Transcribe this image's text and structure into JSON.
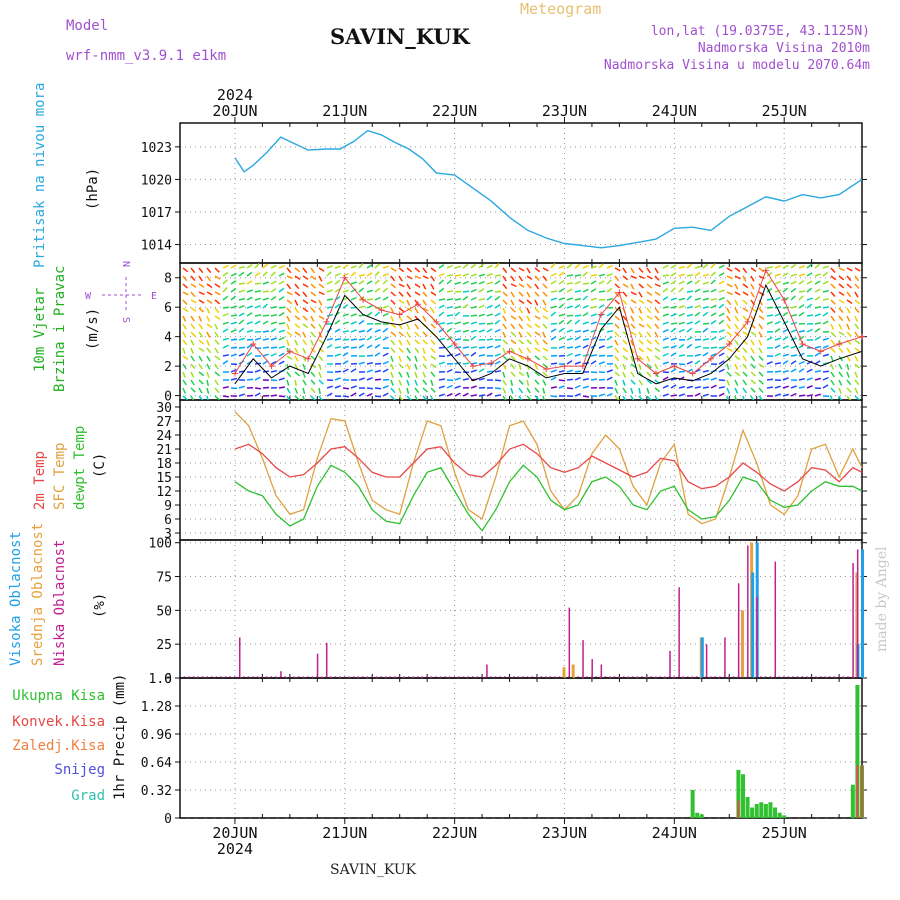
{
  "header": {
    "model_label": "Model",
    "model_name": "wrf-nmm_v3.9.1 e1km",
    "station": "SAVIN_KUK",
    "meteogram_label": "Meteogram",
    "lonlat": "lon,lat (19.0375E, 43.1125N)",
    "altitude": "Nadmorska Visina 2010m",
    "model_altitude": "Nadmorska Visina u modelu 2070.64m",
    "year": "2024",
    "made_by": "made by Angel",
    "bottom_station": "SAVIN_KUK"
  },
  "colors": {
    "pressure": "#2aa8e0",
    "temp2m": "#e84848",
    "sfc_temp": "#e0a040",
    "dewpoint": "#30c030",
    "cloud_high": "#20a0e8",
    "cloud_mid": "#e8a040",
    "cloud_low": "#c02090",
    "precip_total": "#30c030",
    "precip_conv": "#e84848",
    "wind_speed": "#000000",
    "wind_gust": "#e84848",
    "axis_purple": "#a050d0"
  },
  "chart_data": [
    {
      "type": "line",
      "id": "pressure",
      "x_ticks": [
        "20JUN",
        "21JUN",
        "22JUN",
        "23JUN",
        "24JUN",
        "25JUN"
      ],
      "ylabel_title": "Pritisak na nivou mora",
      "ylabel_unit": "(hPa)",
      "yticks": [
        1014,
        1017,
        1020,
        1023
      ],
      "ylim": [
        1012.3,
        1025.2
      ],
      "x_hours": [
        0,
        2,
        4,
        7,
        10,
        13,
        16,
        20,
        23,
        26,
        29,
        32,
        35,
        38,
        41,
        44,
        48,
        52,
        56,
        60,
        64,
        68,
        72,
        76,
        80,
        84,
        88,
        92,
        96,
        100,
        104,
        108,
        112,
        116,
        120,
        124,
        128,
        132,
        137
      ],
      "values": [
        1022,
        1020.7,
        1021.3,
        1022.5,
        1023.9,
        1023.3,
        1022.7,
        1022.8,
        1022.8,
        1023.5,
        1024.5,
        1024.1,
        1023.4,
        1022.8,
        1021.9,
        1020.6,
        1020.4,
        1019.2,
        1018.0,
        1016.5,
        1015.3,
        1014.6,
        1014.1,
        1013.9,
        1013.7,
        1013.9,
        1014.2,
        1014.5,
        1015.5,
        1015.6,
        1015.3,
        1016.6,
        1017.5,
        1018.4,
        1018.0,
        1018.6,
        1018.3,
        1018.6,
        1020.0
      ]
    },
    {
      "type": "line",
      "id": "wind",
      "x_ticks": [
        "20JUN",
        "21JUN",
        "22JUN",
        "23JUN",
        "24JUN",
        "25JUN"
      ],
      "ylabel_title": "10m Vjetar Brzina i Pravac",
      "ylabel_title_lines": [
        "10m Vjetar",
        "Brzina i Pravac"
      ],
      "ylabel_unit": "(m/s)",
      "yticks": [
        0,
        2,
        4,
        6,
        8
      ],
      "ylim": [
        -0.3,
        9.0
      ],
      "compass": [
        "N",
        "W",
        "E",
        "S"
      ],
      "x_hours": [
        0,
        4,
        8,
        12,
        16,
        20,
        24,
        28,
        32,
        36,
        40,
        44,
        48,
        52,
        56,
        60,
        64,
        68,
        72,
        76,
        80,
        84,
        88,
        92,
        96,
        100,
        104,
        108,
        112,
        116,
        120,
        124,
        128,
        132,
        137
      ],
      "speed": [
        0.8,
        2.5,
        1.2,
        2.0,
        1.5,
        4.0,
        6.8,
        5.5,
        5.0,
        4.8,
        5.2,
        4.0,
        2.5,
        1.0,
        1.5,
        2.5,
        2.0,
        1.2,
        1.5,
        1.5,
        4.5,
        6.0,
        1.5,
        0.8,
        1.2,
        1.0,
        1.5,
        2.5,
        4.0,
        7.5,
        5.0,
        2.5,
        2.0,
        2.5,
        3.0
      ],
      "gust": [
        1.5,
        3.5,
        2.0,
        3.0,
        2.5,
        5.0,
        8.0,
        6.5,
        5.8,
        5.5,
        6.2,
        5.0,
        3.5,
        2.0,
        2.2,
        3.0,
        2.5,
        1.8,
        2.0,
        2.0,
        5.5,
        7.0,
        2.5,
        1.5,
        2.0,
        1.5,
        2.5,
        3.5,
        5.0,
        8.5,
        6.5,
        3.5,
        3.0,
        3.5,
        4.0
      ]
    },
    {
      "type": "line",
      "id": "temperature",
      "x_ticks": [
        "20JUN",
        "21JUN",
        "22JUN",
        "23JUN",
        "24JUN",
        "25JUN"
      ],
      "ylabel_series": [
        "2m Temp",
        "SFC Temp",
        "dewpt Temp"
      ],
      "ylabel_unit": "(C)",
      "yticks": [
        3,
        6,
        9,
        12,
        15,
        18,
        21,
        24,
        27,
        30
      ],
      "ylim": [
        1.5,
        31.5
      ],
      "x_hours": [
        0,
        3,
        6,
        9,
        12,
        15,
        18,
        21,
        24,
        27,
        30,
        33,
        36,
        39,
        42,
        45,
        48,
        51,
        54,
        57,
        60,
        63,
        66,
        69,
        72,
        75,
        78,
        81,
        84,
        87,
        90,
        93,
        96,
        99,
        102,
        105,
        108,
        111,
        114,
        117,
        120,
        123,
        126,
        129,
        132,
        135,
        137
      ],
      "t2m": [
        21,
        22,
        20,
        17,
        15,
        15.5,
        18,
        21,
        21.5,
        19,
        16,
        15,
        15,
        18,
        21,
        21.5,
        18,
        15.5,
        15,
        17.5,
        21,
        22,
        20,
        17,
        16,
        17,
        19.5,
        18,
        16.5,
        15,
        16,
        19,
        18.5,
        14,
        12.5,
        13,
        15,
        18,
        16,
        13.5,
        12,
        14,
        17,
        16.5,
        14,
        17,
        16
      ],
      "sfc": [
        29,
        26,
        19,
        11,
        7,
        8,
        19,
        27.5,
        27,
        18,
        10,
        8,
        7,
        18,
        27,
        26,
        16,
        8,
        6,
        15,
        26,
        27,
        22,
        12,
        8,
        11,
        20,
        24,
        21,
        13,
        9,
        18,
        22,
        7,
        5,
        6,
        15,
        25,
        18,
        9,
        7,
        11,
        21,
        22,
        15,
        21,
        17
      ],
      "dew": [
        14,
        12,
        11,
        7,
        4.5,
        6,
        13,
        17.5,
        16,
        13,
        8,
        5.5,
        5,
        11,
        16,
        17,
        12,
        7,
        3.5,
        8,
        14,
        17.5,
        15,
        10,
        8,
        9,
        14,
        15,
        13,
        9,
        8,
        12,
        13,
        8,
        6,
        6.5,
        10,
        15,
        14,
        10,
        8.5,
        9,
        12,
        14,
        13,
        13,
        12
      ]
    },
    {
      "type": "bar",
      "id": "clouds",
      "x_ticks": [
        "20JUN",
        "21JUN",
        "22JUN",
        "23JUN",
        "24JUN",
        "25JUN"
      ],
      "ylabel_series": [
        "Visoka Oblacnost",
        "Srednja Oblacnost",
        "Niska Oblacnost"
      ],
      "ylabel_unit": "(%)",
      "yticks": [
        0,
        25,
        50,
        75,
        100
      ],
      "ylim": [
        0,
        102
      ],
      "low": [
        {
          "h": 1,
          "v": 30
        },
        {
          "h": 10,
          "v": 5
        },
        {
          "h": 18,
          "v": 18
        },
        {
          "h": 20,
          "v": 26
        },
        {
          "h": 55,
          "v": 10
        },
        {
          "h": 73,
          "v": 52
        },
        {
          "h": 76,
          "v": 28
        },
        {
          "h": 78,
          "v": 14
        },
        {
          "h": 80,
          "v": 10
        },
        {
          "h": 95,
          "v": 20
        },
        {
          "h": 97,
          "v": 67
        },
        {
          "h": 103,
          "v": 25
        },
        {
          "h": 107,
          "v": 30
        },
        {
          "h": 110,
          "v": 70
        },
        {
          "h": 112,
          "v": 98
        },
        {
          "h": 114,
          "v": 60
        },
        {
          "h": 118,
          "v": 86
        },
        {
          "h": 135,
          "v": 85
        },
        {
          "h": 136,
          "v": 95
        }
      ],
      "mid": [
        {
          "h": 72,
          "v": 8
        },
        {
          "h": 74,
          "v": 10
        },
        {
          "h": 102,
          "v": 30
        },
        {
          "h": 111,
          "v": 50
        },
        {
          "h": 113,
          "v": 100
        },
        {
          "h": 136,
          "v": 78
        }
      ],
      "high": [
        {
          "h": 102,
          "v": 30
        },
        {
          "h": 113,
          "v": 78
        },
        {
          "h": 114,
          "v": 100
        },
        {
          "h": 136,
          "v": 25
        },
        {
          "h": 137,
          "v": 95
        }
      ]
    },
    {
      "type": "bar",
      "id": "precip",
      "x_ticks": [
        "20JUN",
        "21JUN",
        "22JUN",
        "23JUN",
        "24JUN",
        "25JUN"
      ],
      "xticks_bottom": [
        "20JUN",
        "21JUN",
        "22JUN",
        "23JUN",
        "24JUN",
        "25JUN"
      ],
      "ylabel_unit": "1hr Precip (mm)",
      "yticks": [
        0,
        0.32,
        0.64,
        0.96,
        1.28,
        1.6
      ],
      "ytick_labels": [
        "0",
        "0.32",
        "0.64",
        "0.96",
        "1.28",
        "1.6"
      ],
      "ylim": [
        0,
        1.6
      ],
      "legend": [
        "Ukupna Kisa",
        "Konvek.Kisa",
        "Zaledj.Kisa",
        "Snijeg",
        "Grad"
      ],
      "total": [
        {
          "h": 100,
          "v": 0.32
        },
        {
          "h": 101,
          "v": 0.06
        },
        {
          "h": 102,
          "v": 0.04
        },
        {
          "h": 110,
          "v": 0.55
        },
        {
          "h": 111,
          "v": 0.5
        },
        {
          "h": 112,
          "v": 0.24
        },
        {
          "h": 113,
          "v": 0.12
        },
        {
          "h": 114,
          "v": 0.16
        },
        {
          "h": 115,
          "v": 0.18
        },
        {
          "h": 116,
          "v": 0.16
        },
        {
          "h": 117,
          "v": 0.18
        },
        {
          "h": 118,
          "v": 0.12
        },
        {
          "h": 119,
          "v": 0.06
        },
        {
          "h": 120,
          "v": 0.03
        },
        {
          "h": 135,
          "v": 0.38
        },
        {
          "h": 136,
          "v": 1.52
        },
        {
          "h": 137,
          "v": 0.6
        }
      ],
      "conv": [
        {
          "h": 110,
          "v": 0.2
        },
        {
          "h": 136,
          "v": 0.6
        },
        {
          "h": 137,
          "v": 0.6
        }
      ]
    }
  ]
}
